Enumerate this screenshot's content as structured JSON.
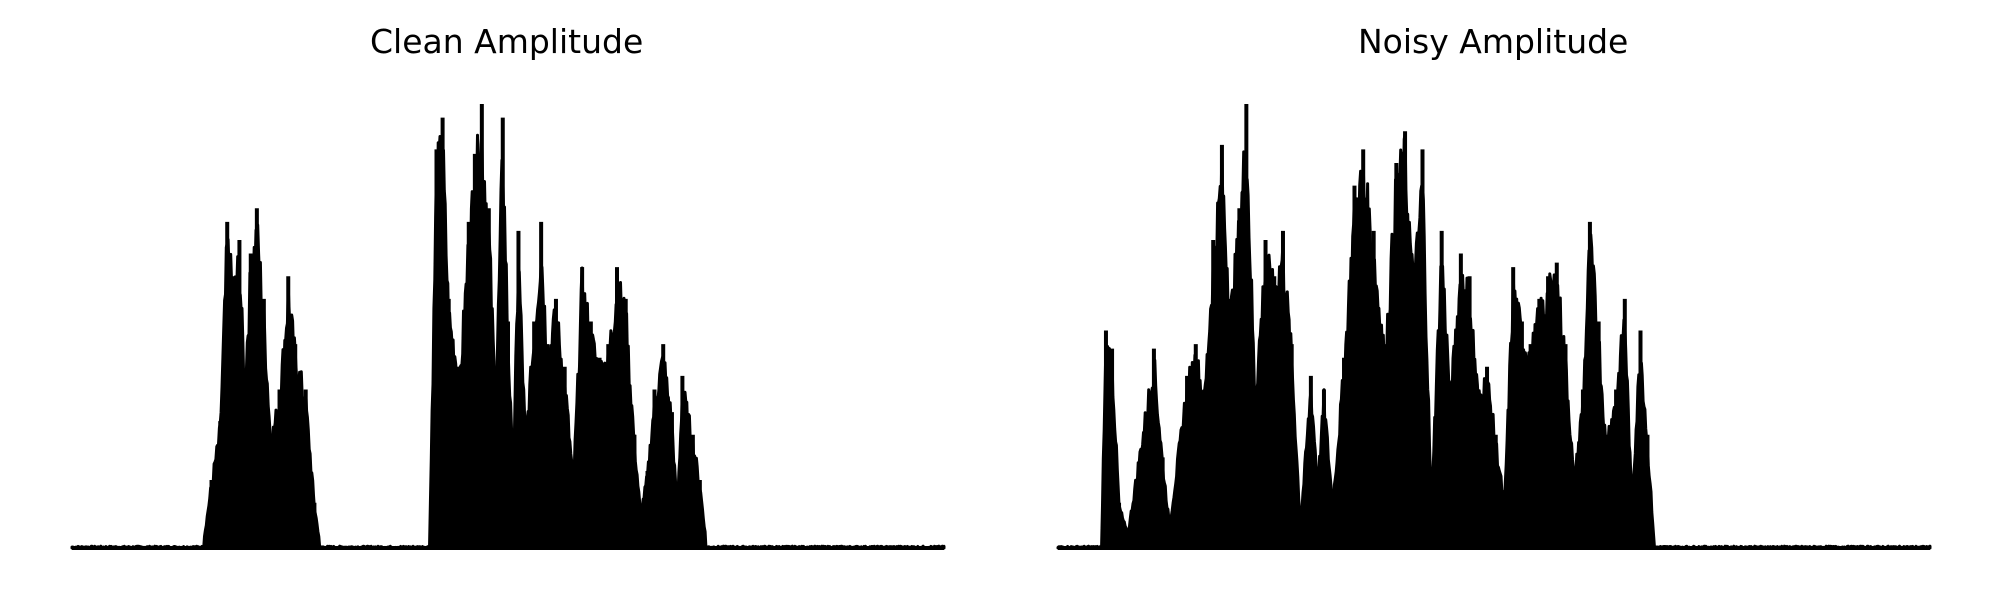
{
  "chart_data": [
    {
      "type": "area",
      "title": "Clean Amplitude",
      "xlabel": "",
      "ylabel": "",
      "grid": false,
      "axes_visible": false,
      "color": "#000000",
      "xlim": [
        0,
        1000
      ],
      "ylim": [
        0,
        1.0
      ],
      "envelope": [
        {
          "x": 0,
          "y": 0.0
        },
        {
          "x": 150,
          "y": 0.0
        },
        {
          "x": 160,
          "y": 0.15
        },
        {
          "x": 170,
          "y": 0.28
        },
        {
          "x": 178,
          "y": 0.72
        },
        {
          "x": 185,
          "y": 0.6
        },
        {
          "x": 192,
          "y": 0.68
        },
        {
          "x": 198,
          "y": 0.38
        },
        {
          "x": 205,
          "y": 0.65
        },
        {
          "x": 212,
          "y": 0.75
        },
        {
          "x": 220,
          "y": 0.55
        },
        {
          "x": 228,
          "y": 0.25
        },
        {
          "x": 238,
          "y": 0.35
        },
        {
          "x": 248,
          "y": 0.6
        },
        {
          "x": 256,
          "y": 0.45
        },
        {
          "x": 268,
          "y": 0.35
        },
        {
          "x": 278,
          "y": 0.1
        },
        {
          "x": 285,
          "y": 0.0
        },
        {
          "x": 410,
          "y": 0.0
        },
        {
          "x": 418,
          "y": 0.88
        },
        {
          "x": 425,
          "y": 0.95
        },
        {
          "x": 432,
          "y": 0.55
        },
        {
          "x": 445,
          "y": 0.4
        },
        {
          "x": 455,
          "y": 0.72
        },
        {
          "x": 462,
          "y": 0.87
        },
        {
          "x": 470,
          "y": 0.98
        },
        {
          "x": 478,
          "y": 0.75
        },
        {
          "x": 486,
          "y": 0.33
        },
        {
          "x": 494,
          "y": 0.95
        },
        {
          "x": 500,
          "y": 0.5
        },
        {
          "x": 506,
          "y": 0.15
        },
        {
          "x": 512,
          "y": 0.7
        },
        {
          "x": 520,
          "y": 0.25
        },
        {
          "x": 530,
          "y": 0.5
        },
        {
          "x": 538,
          "y": 0.72
        },
        {
          "x": 545,
          "y": 0.45
        },
        {
          "x": 555,
          "y": 0.55
        },
        {
          "x": 565,
          "y": 0.4
        },
        {
          "x": 575,
          "y": 0.15
        },
        {
          "x": 585,
          "y": 0.62
        },
        {
          "x": 595,
          "y": 0.5
        },
        {
          "x": 605,
          "y": 0.42
        },
        {
          "x": 615,
          "y": 0.45
        },
        {
          "x": 625,
          "y": 0.62
        },
        {
          "x": 635,
          "y": 0.55
        },
        {
          "x": 645,
          "y": 0.25
        },
        {
          "x": 652,
          "y": 0.08
        },
        {
          "x": 660,
          "y": 0.17
        },
        {
          "x": 668,
          "y": 0.35
        },
        {
          "x": 678,
          "y": 0.45
        },
        {
          "x": 688,
          "y": 0.3
        },
        {
          "x": 694,
          "y": 0.08
        },
        {
          "x": 700,
          "y": 0.38
        },
        {
          "x": 712,
          "y": 0.25
        },
        {
          "x": 720,
          "y": 0.15
        },
        {
          "x": 728,
          "y": 0.0
        },
        {
          "x": 1000,
          "y": 0.0
        }
      ]
    },
    {
      "type": "area",
      "title": "Noisy Amplitude",
      "xlabel": "",
      "ylabel": "",
      "grid": false,
      "axes_visible": false,
      "color": "#000000",
      "xlim": [
        0,
        1000
      ],
      "ylim": [
        0,
        1.0
      ],
      "envelope": [
        {
          "x": 0,
          "y": 0.0
        },
        {
          "x": 30,
          "y": 0.01
        },
        {
          "x": 50,
          "y": 0.02
        },
        {
          "x": 55,
          "y": 0.48
        },
        {
          "x": 62,
          "y": 0.44
        },
        {
          "x": 70,
          "y": 0.1
        },
        {
          "x": 80,
          "y": 0.03
        },
        {
          "x": 110,
          "y": 0.44
        },
        {
          "x": 120,
          "y": 0.2
        },
        {
          "x": 128,
          "y": 0.05
        },
        {
          "x": 148,
          "y": 0.38
        },
        {
          "x": 158,
          "y": 0.45
        },
        {
          "x": 168,
          "y": 0.35
        },
        {
          "x": 178,
          "y": 0.68
        },
        {
          "x": 188,
          "y": 0.89
        },
        {
          "x": 198,
          "y": 0.55
        },
        {
          "x": 208,
          "y": 0.75
        },
        {
          "x": 216,
          "y": 0.98
        },
        {
          "x": 226,
          "y": 0.35
        },
        {
          "x": 238,
          "y": 0.68
        },
        {
          "x": 248,
          "y": 0.6
        },
        {
          "x": 258,
          "y": 0.7
        },
        {
          "x": 268,
          "y": 0.45
        },
        {
          "x": 278,
          "y": 0.05
        },
        {
          "x": 290,
          "y": 0.38
        },
        {
          "x": 298,
          "y": 0.15
        },
        {
          "x": 305,
          "y": 0.35
        },
        {
          "x": 315,
          "y": 0.1
        },
        {
          "x": 328,
          "y": 0.42
        },
        {
          "x": 340,
          "y": 0.8
        },
        {
          "x": 350,
          "y": 0.88
        },
        {
          "x": 362,
          "y": 0.7
        },
        {
          "x": 375,
          "y": 0.45
        },
        {
          "x": 388,
          "y": 0.85
        },
        {
          "x": 398,
          "y": 0.92
        },
        {
          "x": 408,
          "y": 0.6
        },
        {
          "x": 418,
          "y": 0.88
        },
        {
          "x": 428,
          "y": 0.1
        },
        {
          "x": 440,
          "y": 0.7
        },
        {
          "x": 450,
          "y": 0.35
        },
        {
          "x": 462,
          "y": 0.65
        },
        {
          "x": 472,
          "y": 0.6
        },
        {
          "x": 482,
          "y": 0.35
        },
        {
          "x": 492,
          "y": 0.4
        },
        {
          "x": 502,
          "y": 0.25
        },
        {
          "x": 512,
          "y": 0.1
        },
        {
          "x": 522,
          "y": 0.62
        },
        {
          "x": 532,
          "y": 0.5
        },
        {
          "x": 542,
          "y": 0.45
        },
        {
          "x": 552,
          "y": 0.55
        },
        {
          "x": 562,
          "y": 0.6
        },
        {
          "x": 572,
          "y": 0.63
        },
        {
          "x": 582,
          "y": 0.45
        },
        {
          "x": 592,
          "y": 0.15
        },
        {
          "x": 602,
          "y": 0.35
        },
        {
          "x": 610,
          "y": 0.72
        },
        {
          "x": 620,
          "y": 0.5
        },
        {
          "x": 628,
          "y": 0.25
        },
        {
          "x": 640,
          "y": 0.35
        },
        {
          "x": 650,
          "y": 0.55
        },
        {
          "x": 658,
          "y": 0.1
        },
        {
          "x": 668,
          "y": 0.48
        },
        {
          "x": 676,
          "y": 0.25
        },
        {
          "x": 684,
          "y": 0.0
        },
        {
          "x": 1000,
          "y": 0.0
        }
      ]
    }
  ]
}
